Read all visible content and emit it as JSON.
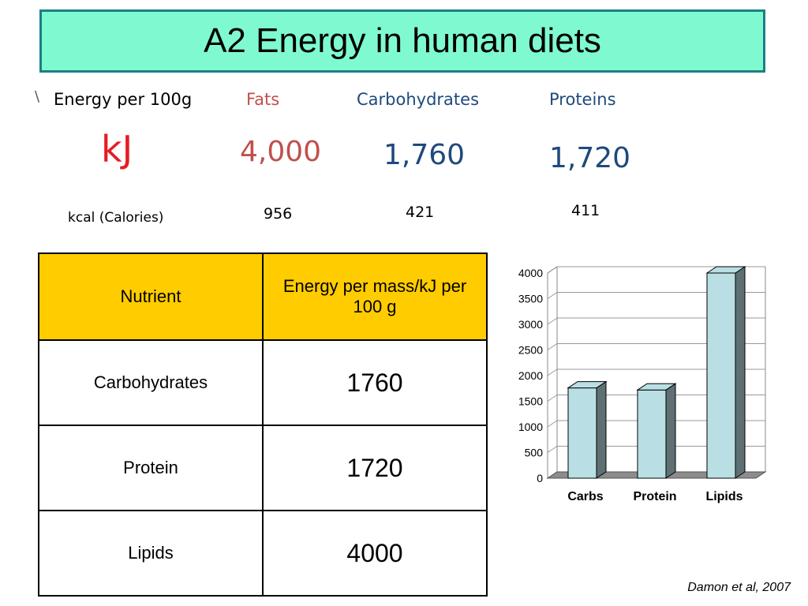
{
  "title": "A2 Energy in human diets",
  "energy_panel": {
    "stray_mark": "\\",
    "row_label": "Energy per 100g",
    "headers": [
      {
        "label": "Fats",
        "color": "#c0504d"
      },
      {
        "label": "Carbohydrates",
        "color": "#1f497d"
      },
      {
        "label": "Proteins",
        "color": "#1f497d"
      }
    ],
    "kj_label": "kJ",
    "kj_color": "#e51c23",
    "kj_values": [
      "4,000",
      "1,760",
      "1,720"
    ],
    "kcal_label": "kcal (Calories)",
    "kcal_values": [
      "956",
      "421",
      "411"
    ]
  },
  "table": {
    "header_nutrient": "Nutrient",
    "header_energy": "Energy per mass/kJ per 100 g",
    "rows": [
      {
        "nutrient": "Carbohydrates",
        "energy": "1760"
      },
      {
        "nutrient": "Protein",
        "energy": "1720"
      },
      {
        "nutrient": "Lipids",
        "energy": "4000"
      }
    ],
    "header_color": "#ffcc00"
  },
  "chart_data": {
    "type": "bar",
    "categories": [
      "Carbs",
      "Protein",
      "Lipids"
    ],
    "values": [
      1760,
      1720,
      4000
    ],
    "ylim": [
      0,
      4000
    ],
    "yticks": [
      "0",
      "500",
      "1000",
      "1500",
      "2000",
      "2500",
      "3000",
      "3500",
      "4000"
    ],
    "grid": true,
    "bar_color": "#b9dfe4",
    "bar_side_color": "#5f7074"
  },
  "citation": "Damon et al, 2007"
}
